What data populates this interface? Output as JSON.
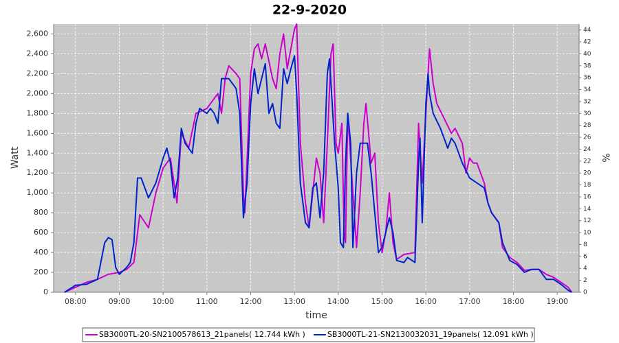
{
  "chart_data": {
    "type": "line",
    "title": "22-9-2020",
    "x_label": "time",
    "y_label": "Watt",
    "y2_label": "%",
    "xlim": [
      "07:30",
      "19:30"
    ],
    "xticks": [
      "08:00",
      "09:00",
      "10:00",
      "11:00",
      "12:00",
      "13:00",
      "14:00",
      "15:00",
      "16:00",
      "17:00",
      "18:00",
      "19:00"
    ],
    "ylim": [
      0,
      2700
    ],
    "yticks": [
      0,
      200,
      400,
      600,
      800,
      {
        "value": 1000,
        "label": "1,000"
      },
      {
        "value": 1200,
        "label": "1,200"
      },
      {
        "value": 1400,
        "label": "1,400"
      },
      {
        "value": 1600,
        "label": "1,600"
      },
      {
        "value": 1800,
        "label": "1,800"
      },
      {
        "value": 2000,
        "label": "2,000"
      },
      {
        "value": 2200,
        "label": "2,200"
      },
      {
        "value": 2400,
        "label": "2,400"
      },
      {
        "value": 2600,
        "label": "2,600"
      }
    ],
    "y2lim": [
      0,
      45
    ],
    "y2ticks": [
      0,
      2,
      4,
      6,
      8,
      10,
      12,
      14,
      16,
      18,
      20,
      22,
      24,
      26,
      28,
      30,
      32,
      34,
      36,
      38,
      40,
      42,
      44
    ],
    "grid": true,
    "legend": "bottom",
    "series": [
      {
        "name": "SB3000TL-20-SN2100578613_21panels( 12.744 kWh )",
        "color": "#cc00cc",
        "x": [
          "07:45",
          "08:00",
          "08:15",
          "08:30",
          "08:45",
          "09:00",
          "09:10",
          "09:20",
          "09:28",
          "09:40",
          "09:50",
          "10:00",
          "10:05",
          "10:10",
          "10:19",
          "10:25",
          "10:35",
          "10:45",
          "11:00",
          "11:10",
          "11:15",
          "11:20",
          "11:25",
          "11:30",
          "11:40",
          "11:45",
          "11:50",
          "11:52",
          "12:00",
          "12:05",
          "12:10",
          "12:15",
          "12:20",
          "12:30",
          "12:35",
          "12:40",
          "12:45",
          "12:50",
          "12:55",
          "13:00",
          "13:03",
          "13:08",
          "13:15",
          "13:20",
          "13:25",
          "13:30",
          "13:35",
          "13:40",
          "13:45",
          "13:50",
          "13:53",
          "13:57",
          "14:00",
          "14:05",
          "14:08",
          "14:10",
          "14:13",
          "14:20",
          "14:25",
          "14:30",
          "14:35",
          "14:38",
          "14:45",
          "14:50",
          "14:55",
          "15:00",
          "15:05",
          "15:10",
          "15:15",
          "15:20",
          "15:30",
          "15:45",
          "15:50",
          "15:55",
          "16:00",
          "16:05",
          "16:10",
          "16:15",
          "16:25",
          "16:35",
          "16:40",
          "16:50",
          "16:55",
          "17:00",
          "17:05",
          "17:10",
          "17:20",
          "17:25",
          "17:30",
          "17:40",
          "17:45",
          "17:55",
          "18:05",
          "18:15",
          "18:25",
          "18:35",
          "18:45",
          "18:55",
          "19:05",
          "19:15",
          "19:20"
        ],
        "values": [
          0,
          50,
          100,
          130,
          180,
          200,
          230,
          300,
          780,
          650,
          1000,
          1250,
          1300,
          1350,
          900,
          1600,
          1450,
          1800,
          1850,
          1950,
          2000,
          1800,
          2150,
          2280,
          2200,
          2150,
          1000,
          800,
          2200,
          2450,
          2500,
          2350,
          2500,
          2150,
          2050,
          2400,
          2600,
          2250,
          2450,
          2650,
          2700,
          1500,
          900,
          650,
          1000,
          1350,
          1200,
          700,
          1500,
          2400,
          2500,
          1500,
          1400,
          1700,
          600,
          500,
          1800,
          1000,
          450,
          1000,
          1700,
          1900,
          1300,
          1400,
          700,
          400,
          600,
          1000,
          500,
          330,
          380,
          400,
          1700,
          1100,
          1800,
          2450,
          2100,
          1900,
          1750,
          1600,
          1650,
          1500,
          1200,
          1350,
          1300,
          1300,
          1100,
          900,
          800,
          700,
          450,
          350,
          300,
          220,
          230,
          230,
          180,
          150,
          100,
          50,
          0
        ]
      },
      {
        "name": "SB3000TL-21-SN2130032031_19panels( 12.091 kWh )",
        "color": "#0022cc",
        "x": [
          "07:45",
          "08:00",
          "08:15",
          "08:30",
          "08:40",
          "08:45",
          "08:50",
          "08:55",
          "09:00",
          "09:10",
          "09:15",
          "09:20",
          "09:25",
          "09:30",
          "09:40",
          "09:50",
          "10:00",
          "10:05",
          "10:10",
          "10:15",
          "10:20",
          "10:25",
          "10:30",
          "10:40",
          "10:45",
          "10:50",
          "11:00",
          "11:05",
          "11:10",
          "11:15",
          "11:20",
          "11:30",
          "11:40",
          "11:45",
          "11:50",
          "11:55",
          "12:00",
          "12:05",
          "12:10",
          "12:20",
          "12:25",
          "12:30",
          "12:35",
          "12:40",
          "12:45",
          "12:50",
          "12:55",
          "13:00",
          "13:03",
          "13:08",
          "13:15",
          "13:20",
          "13:25",
          "13:30",
          "13:35",
          "13:40",
          "13:45",
          "13:48",
          "13:55",
          "14:00",
          "14:03",
          "14:07",
          "14:10",
          "14:13",
          "14:17",
          "14:20",
          "14:25",
          "14:30",
          "14:40",
          "14:45",
          "14:50",
          "14:55",
          "15:00",
          "15:10",
          "15:15",
          "15:20",
          "15:30",
          "15:35",
          "15:45",
          "15:50",
          "15:52",
          "15:55",
          "16:00",
          "16:03",
          "16:05",
          "16:10",
          "16:20",
          "16:30",
          "16:35",
          "16:40",
          "16:50",
          "17:00",
          "17:10",
          "17:20",
          "17:25",
          "17:30",
          "17:40",
          "17:45",
          "17:55",
          "18:05",
          "18:15",
          "18:25",
          "18:35",
          "18:45",
          "18:55",
          "19:05",
          "19:15",
          "19:20"
        ],
        "values": [
          0,
          70,
          80,
          130,
          500,
          550,
          530,
          250,
          180,
          250,
          300,
          500,
          1150,
          1150,
          950,
          1100,
          1350,
          1450,
          1300,
          950,
          1150,
          1650,
          1500,
          1400,
          1700,
          1850,
          1800,
          1850,
          1800,
          1700,
          2150,
          2150,
          2050,
          1800,
          750,
          1100,
          1900,
          2250,
          2000,
          2300,
          1800,
          1900,
          1700,
          1650,
          2250,
          2100,
          2250,
          2380,
          2000,
          1100,
          700,
          650,
          1050,
          1100,
          750,
          1200,
          2200,
          2350,
          1500,
          1050,
          500,
          450,
          1300,
          1800,
          1500,
          450,
          1200,
          1500,
          1500,
          1200,
          800,
          400,
          450,
          750,
          600,
          320,
          300,
          350,
          300,
          1300,
          1550,
          700,
          1900,
          2200,
          2000,
          1800,
          1650,
          1450,
          1550,
          1500,
          1300,
          1150,
          1100,
          1050,
          900,
          800,
          700,
          500,
          320,
          280,
          200,
          230,
          230,
          130,
          130,
          80,
          20,
          0
        ]
      }
    ]
  }
}
